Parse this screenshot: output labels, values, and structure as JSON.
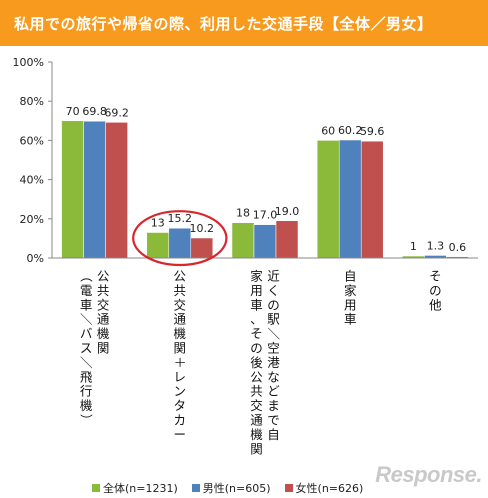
{
  "title": "私用での旅行や帰省の際、利用した交通手段【全体／男女】",
  "chart_data": {
    "type": "bar",
    "categories": [
      [
        "公共交通機関",
        "（電車／バス／飛行機）"
      ],
      [
        "公共交通機関＋レンタカー"
      ],
      [
        "近くの駅／空港などまで自",
        "家用車、その後公共交通機関"
      ],
      [
        "自家用車"
      ],
      [
        "その他"
      ]
    ],
    "series": [
      {
        "name": "全体(n=1231)",
        "color": "#8bb93a",
        "values": [
          70,
          13,
          18,
          60,
          1
        ],
        "labels": [
          "70",
          "13",
          "18",
          "60",
          "1"
        ]
      },
      {
        "name": "男性(n=605)",
        "color": "#4f81bd",
        "values": [
          69.8,
          15.2,
          17.0,
          60.2,
          1.3
        ],
        "labels": [
          "69.8",
          "15.2",
          "17.0",
          "60.2",
          "1.3"
        ]
      },
      {
        "name": "女性(n=626)",
        "color": "#c0504d",
        "values": [
          69.2,
          10.2,
          19.0,
          59.6,
          0.6
        ],
        "labels": [
          "69.2",
          "10.2",
          "19.0",
          "59.6",
          "0.6"
        ]
      }
    ],
    "ylim": [
      0,
      100
    ],
    "yticks": [
      "0%",
      "20%",
      "40%",
      "60%",
      "80%",
      "100%"
    ],
    "highlight": {
      "category_index": 1,
      "color": "#d9262c"
    },
    "legend_position": "bottom"
  },
  "watermark": "Response."
}
